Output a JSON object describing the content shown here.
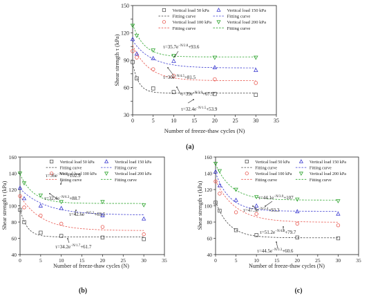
{
  "colors": {
    "vl50": "#555555",
    "vl100": "#e8574f",
    "vl150": "#3a3ad0",
    "vl200": "#2fa52f",
    "fit_dark": "#3a3a3a"
  },
  "chart_data": [
    {
      "type": "scatter",
      "label": "(a)",
      "xlabel": "Number of freeze-thaw cycles (N)",
      "ylabel": "Shear strength τ (kPa)",
      "xlim": [
        0,
        35
      ],
      "ylim": [
        30,
        150
      ],
      "xticks": [
        0,
        5,
        10,
        15,
        20,
        25,
        30,
        35
      ],
      "yticks": [
        30,
        45,
        60,
        75,
        90,
        105,
        120,
        135,
        150
      ],
      "ytick_labels": [
        "30",
        "",
        "60",
        "",
        "90",
        "",
        "120",
        "",
        "150"
      ],
      "x": [
        0,
        1,
        5,
        10,
        20,
        30
      ],
      "legend": [
        "Vertical load 50 kPa",
        "Vertical load 150 kPa",
        "Fitting curve",
        "Fitting curve",
        "Vertical load 100 kPa",
        "Vertical load 200 kPa",
        "Fitting curve",
        "Fitting curve"
      ],
      "series": [
        {
          "name": "Vertical load 50 kPa",
          "marker": "square",
          "values": [
            88,
            70,
            59,
            55,
            53,
            52
          ],
          "fit": {
            "a": 32.4,
            "b": 1.5,
            "c": 53.9
          },
          "equation": "τ=32.4e^{−N/1.5}+53.9"
        },
        {
          "name": "Vertical load 100 kPa",
          "marker": "circle",
          "values": [
            100,
            93,
            80,
            73,
            69,
            65
          ],
          "fit": {
            "a": 39,
            "b": 3.9,
            "c": 67.5
          },
          "equation": "τ=39e^{−N/3.9}+67.5"
        },
        {
          "name": "Vertical load 150 kPa",
          "marker": "triangle-up",
          "values": [
            113,
            97,
            92,
            89,
            82,
            79
          ],
          "fit": {
            "a": 30,
            "b": 4.5,
            "c": 81.5
          },
          "equation": "τ=30e^{−N/4.5}+81.5"
        },
        {
          "name": "Vertical load 200 kPa",
          "marker": "triangle-down",
          "values": [
            128,
            117,
            101,
            95,
            93,
            93
          ],
          "fit": {
            "a": 35.7,
            "b": 2.8,
            "c": 93.6
          },
          "equation": "τ=35.7e^{−N/2.8}+93.6"
        }
      ]
    },
    {
      "type": "scatter",
      "label": "(b)",
      "xlabel": "Number of freeze-thaw cycles (N)",
      "ylabel": "Shear strength τ (kPa)",
      "xlim": [
        0,
        35
      ],
      "ylim": [
        40,
        160
      ],
      "xticks": [
        0,
        5,
        10,
        15,
        20,
        25,
        30,
        35
      ],
      "yticks": [
        40,
        60,
        80,
        100,
        120,
        140,
        160
      ],
      "x": [
        0,
        1,
        5,
        10,
        20,
        30
      ],
      "legend": [
        "Vertical load 50 kPa",
        "Vertical load 150 kPa",
        "Fitting curve",
        "Fitting curve",
        "Vertical load 100 kPa",
        "Vertical load 200 kPa",
        "Fitting curve",
        "Fitting curve"
      ],
      "series": [
        {
          "name": "Vertical load 50 kPa",
          "marker": "square",
          "values": [
            95,
            80,
            67,
            63,
            61,
            59
          ],
          "fit": {
            "a": 34.2,
            "b": 1.7,
            "c": 61.7
          },
          "equation": "τ=34.2e^{−N/1.7}+61.7"
        },
        {
          "name": "Vertical load 100 kPa",
          "marker": "circle",
          "values": [
            112,
            98,
            88,
            78,
            74,
            65
          ],
          "fit": {
            "a": 42.6,
            "b": 5.2,
            "c": 69.5
          },
          "equation": "τ=42.6e^{−N/5.2}+69.5"
        },
        {
          "name": "Vertical load 150 kPa",
          "marker": "triangle-up",
          "values": [
            122,
            109,
            100,
            97,
            88,
            84
          ],
          "fit": {
            "a": 32.4,
            "b": 6.3,
            "c": 88.7
          },
          "equation": "τ=32.4e^{−N/6.3}+88.7"
        },
        {
          "name": "Vertical load 200 kPa",
          "marker": "triangle-down",
          "values": [
            140,
            128,
            113,
            105,
            105,
            101
          ],
          "fit": {
            "a": 36,
            "b": 3.2,
            "c": 102.9
          },
          "equation": "τ=36e^{−N/3.2}+102.9"
        }
      ]
    },
    {
      "type": "scatter",
      "label": "(c)",
      "xlabel": "Number of freeze-thaw cycles (N)",
      "ylabel": "Shear strength τ (kPa)",
      "xlim": [
        0,
        35
      ],
      "ylim": [
        40,
        160
      ],
      "xticks": [
        0,
        5,
        10,
        15,
        20,
        25,
        30,
        35
      ],
      "yticks": [
        40,
        60,
        80,
        100,
        120,
        140,
        160
      ],
      "x": [
        0,
        1,
        5,
        10,
        20,
        30
      ],
      "legend": [
        "Vertical load 50 kPa",
        "Vertical load 150 kPa",
        "Fitting curve",
        "Fitting curve",
        "Vertical load 100 kPa",
        "Vertical load 200 kPa",
        "Fitting curve",
        "Fitting curve"
      ],
      "series": [
        {
          "name": "Vertical load 50 kPa",
          "marker": "square",
          "values": [
            104,
            94,
            70,
            64,
            61,
            60
          ],
          "fit": {
            "a": 44.5,
            "b": 3.3,
            "c": 60.6
          },
          "equation": "τ=44.5e^{−N/3.3}+60.6"
        },
        {
          "name": "Vertical load 100 kPa",
          "marker": "circle",
          "values": [
            130,
            115,
            92,
            90,
            78,
            76
          ],
          "fit": {
            "a": 51.2,
            "b": 4.9,
            "c": 79.7
          },
          "equation": "τ=51.2e^{−N/4.9}+79.7"
        },
        {
          "name": "Vertical load 150 kPa",
          "marker": "triangle-up",
          "values": [
            142,
            125,
            107,
            100,
            93,
            90
          ],
          "fit": {
            "a": 47.3,
            "b": 3.4,
            "c": 93.3
          },
          "equation": "τ=47.3e^{−N/3.4}+93.3"
        },
        {
          "name": "Vertical load 200 kPa",
          "marker": "triangle-down",
          "values": [
            152,
            143,
            120,
            111,
            108,
            106
          ],
          "fit": {
            "a": 44.1,
            "b": 3.9,
            "c": 107
          },
          "equation": "τ=44.1e^{−N/3.9}+107"
        }
      ]
    }
  ]
}
